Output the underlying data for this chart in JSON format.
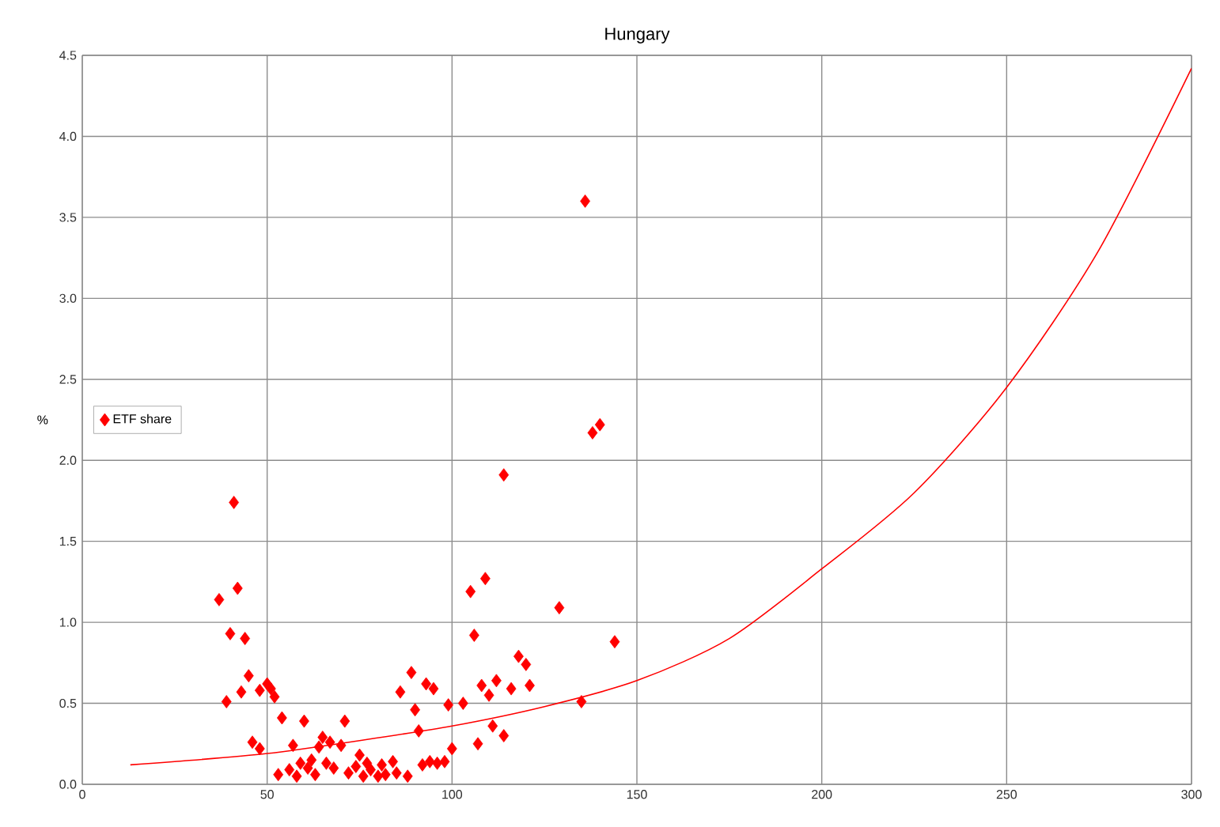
{
  "chart_data": {
    "type": "scatter",
    "title": "Hungary",
    "ylabel": "%",
    "xlim": [
      0,
      300
    ],
    "xticks": [
      0,
      50,
      100,
      150,
      200,
      250,
      300
    ],
    "ylim": [
      0,
      4.5
    ],
    "yticks": [
      {
        "value": 0,
        "label": "0.0"
      },
      {
        "value": 0.5,
        "label": "0.5"
      },
      {
        "value": 1,
        "label": "1.0"
      },
      {
        "value": 1.5,
        "label": "1.5"
      },
      {
        "value": 2,
        "label": "2.0"
      },
      {
        "value": 2.5,
        "label": "2.5"
      },
      {
        "value": 3,
        "label": "3.0"
      },
      {
        "value": 3.5,
        "label": "3.5"
      },
      {
        "value": 4,
        "label": "4.0"
      },
      {
        "value": 4.5,
        "label": "4.5"
      }
    ],
    "grid": true,
    "legend": "left",
    "marker": "diamond",
    "series": [
      {
        "name": "ETF share",
        "color": "#ff0000",
        "x": [
          37,
          39,
          40,
          41,
          42,
          43,
          44,
          45,
          46,
          48,
          48,
          50,
          51,
          52,
          53,
          54,
          56,
          57,
          58,
          59,
          60,
          61,
          62,
          63,
          64,
          65,
          66,
          67,
          68,
          70,
          71,
          72,
          74,
          75,
          76,
          77,
          78,
          80,
          81,
          82,
          84,
          85,
          86,
          88,
          89,
          90,
          91,
          92,
          93,
          94,
          95,
          96,
          98,
          99,
          100,
          103,
          105,
          106,
          107,
          108,
          109,
          110,
          111,
          112,
          114,
          114,
          116,
          118,
          120,
          121,
          129,
          135,
          136,
          138,
          140,
          144
        ],
        "values": [
          1.14,
          0.51,
          0.93,
          1.74,
          1.21,
          0.57,
          0.9,
          0.67,
          0.26,
          0.22,
          0.58,
          0.62,
          0.59,
          0.54,
          0.06,
          0.41,
          0.09,
          0.24,
          0.05,
          0.13,
          0.39,
          0.1,
          0.15,
          0.06,
          0.23,
          0.29,
          0.13,
          0.26,
          0.1,
          0.24,
          0.39,
          0.07,
          0.11,
          0.18,
          0.05,
          0.13,
          0.09,
          0.05,
          0.12,
          0.06,
          0.14,
          0.07,
          0.57,
          0.05,
          0.69,
          0.46,
          0.33,
          0.12,
          0.62,
          0.14,
          0.59,
          0.13,
          0.14,
          0.49,
          0.22,
          0.5,
          1.19,
          0.92,
          0.25,
          0.61,
          1.27,
          0.55,
          0.36,
          0.64,
          1.91,
          0.3,
          0.59,
          0.79,
          0.74,
          0.61,
          1.09,
          0.51,
          3.6,
          2.17,
          2.22,
          0.88
        ]
      },
      {
        "type": "line",
        "color": "#ff0000",
        "marker": "none",
        "x": [
          13,
          25,
          50,
          75,
          100,
          125,
          150,
          175,
          200,
          225,
          250,
          275,
          300
        ],
        "values": [
          0.12,
          0.14,
          0.19,
          0.27,
          0.36,
          0.48,
          0.64,
          0.9,
          1.33,
          1.8,
          2.45,
          3.3,
          4.42
        ]
      }
    ]
  }
}
